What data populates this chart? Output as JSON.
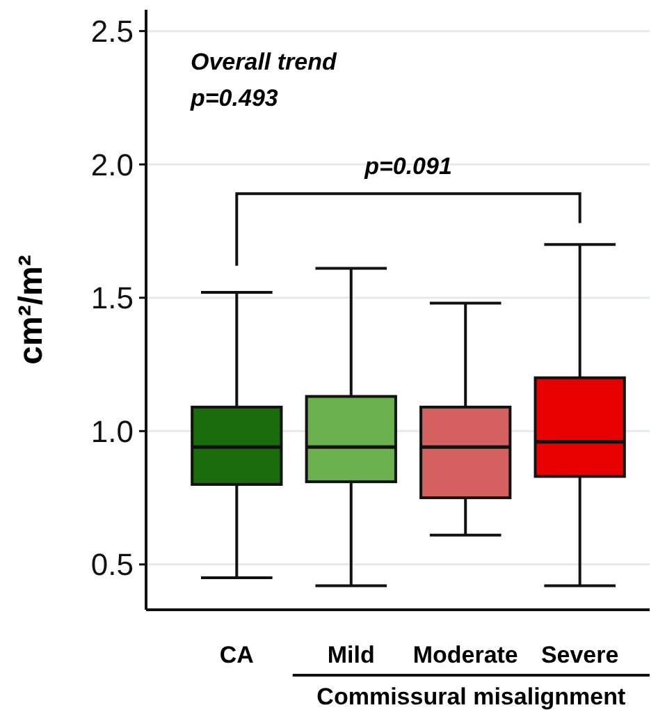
{
  "chart_data": {
    "type": "box",
    "categories": [
      "CA",
      "Mild",
      "Moderate",
      "Severe"
    ],
    "boxes": [
      {
        "low": 0.45,
        "q1": 0.8,
        "median": 0.94,
        "q3": 1.09,
        "high": 1.52
      },
      {
        "low": 0.42,
        "q1": 0.81,
        "median": 0.94,
        "q3": 1.13,
        "high": 1.61
      },
      {
        "low": 0.61,
        "q1": 0.75,
        "median": 0.94,
        "q3": 1.09,
        "high": 1.48
      },
      {
        "low": 0.42,
        "q1": 0.83,
        "median": 0.96,
        "q3": 1.2,
        "high": 1.7
      }
    ],
    "colors": [
      "#1a6b0a",
      "#6ab04c",
      "#d46060",
      "#e80000"
    ],
    "ylabel": "cm²/m²",
    "xlabel": "Commissural misalignment",
    "ylim": [
      0.33,
      2.58
    ],
    "yticks": [
      {
        "value": 0.5,
        "label": "0.5"
      },
      {
        "value": 1,
        "label": "1.0"
      },
      {
        "value": 1.5,
        "label": "1.5"
      },
      {
        "value": 2,
        "label": "2.0"
      },
      {
        "value": 2.5,
        "label": "2.5"
      }
    ],
    "grid": "y",
    "annotations": [
      "Overall trend",
      "p=0.493",
      "p=0.091"
    ]
  }
}
